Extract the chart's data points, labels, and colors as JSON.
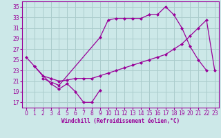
{
  "background_color": "#cce8e8",
  "grid_color": "#aacccc",
  "line_color": "#990099",
  "xlabel": "Windchill (Refroidissement éolien,°C)",
  "xlim": [
    -0.5,
    23.5
  ],
  "ylim": [
    16,
    36
  ],
  "yticks": [
    17,
    19,
    21,
    23,
    25,
    27,
    29,
    31,
    33,
    35
  ],
  "xticks": [
    0,
    1,
    2,
    3,
    4,
    5,
    6,
    7,
    8,
    9,
    10,
    11,
    12,
    13,
    14,
    15,
    16,
    17,
    18,
    19,
    20,
    21,
    22,
    23
  ],
  "series": [
    {
      "x": [
        0,
        1,
        3,
        4,
        5,
        6,
        7,
        8,
        9
      ],
      "y": [
        25.5,
        23.8,
        20.5,
        19.5,
        20.5,
        19.0,
        17.0,
        17.0,
        19.3
      ]
    },
    {
      "x": [
        2,
        4,
        9,
        10,
        11,
        12,
        13,
        14,
        15,
        16,
        17,
        18,
        19,
        20,
        21,
        22
      ],
      "y": [
        21.5,
        20.2,
        29.2,
        32.5,
        32.8,
        32.8,
        32.8,
        32.8,
        33.5,
        33.5,
        35.0,
        33.5,
        31.0,
        27.5,
        25.0,
        23.0
      ]
    },
    {
      "x": [
        1,
        2,
        3,
        4,
        5,
        6,
        7,
        8,
        9,
        10,
        11,
        12,
        13,
        14,
        15,
        16,
        17,
        18,
        19,
        20,
        21,
        22,
        23
      ],
      "y": [
        23.8,
        22.0,
        21.5,
        21.0,
        21.2,
        21.5,
        21.5,
        21.5,
        22.0,
        22.5,
        23.0,
        23.5,
        24.0,
        24.5,
        25.0,
        25.5,
        26.0,
        27.0,
        28.0,
        29.5,
        31.0,
        32.5,
        23.0
      ]
    }
  ]
}
